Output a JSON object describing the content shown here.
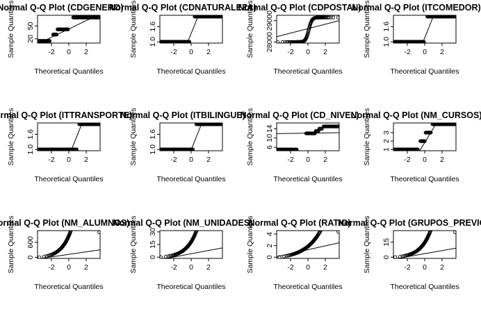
{
  "chart_data": [
    {
      "type": "scatter",
      "title": "Normal Q-Q Plot (CDGENERO)",
      "xlabel": "Theoretical Quantiles",
      "ylabel": "Sample Quantiles",
      "xticks": [
        -2,
        0,
        2
      ],
      "yticks": [
        20,
        50
      ],
      "xlim": [
        -3.6,
        3.6
      ],
      "ylim": [
        10,
        75
      ],
      "levels": [
        {
          "x0": -3.5,
          "x1": -2.2,
          "y": 15
        },
        {
          "x0": -1.8,
          "x1": -1.4,
          "y": 30
        },
        {
          "x0": -1.3,
          "x1": -0.1,
          "y": 42
        },
        {
          "x0": 0.5,
          "x1": 3.5,
          "y": 70
        }
      ],
      "curve": null,
      "line": [
        [
          -3.6,
          8
        ],
        [
          3.6,
          78
        ]
      ]
    },
    {
      "type": "scatter",
      "title": "Normal Q-Q Plot (CDNATURALEZA)",
      "xlabel": "Theoretical Quantiles",
      "ylabel": "Sample Quantiles",
      "xticks": [
        -2,
        0,
        2
      ],
      "yticks": [
        1.0,
        1.6
      ],
      "xlim": [
        -3.6,
        3.6
      ],
      "ylim": [
        0.95,
        2.05
      ],
      "levels": [
        {
          "x0": -3.5,
          "x1": -0.2,
          "y": 1.0
        },
        {
          "x0": 0.4,
          "x1": 3.5,
          "y": 2.0
        }
      ],
      "curve": null,
      "line": [
        [
          -0.5,
          0.9
        ],
        [
          0.9,
          2.1
        ]
      ]
    },
    {
      "type": "scatter",
      "title": "Normal Q-Q Plot (CDPOSTAL)",
      "xlabel": "Theoretical Quantiles",
      "ylabel": "Sample Quantiles",
      "xticks": [
        -2,
        0,
        2
      ],
      "yticks": [
        28000,
        29000
      ],
      "xlim": [
        -3.6,
        3.6
      ],
      "ylim": [
        27950,
        29250
      ],
      "levels": [],
      "curve": {
        "x0": -3.5,
        "x1": 3.5,
        "lo": 28000,
        "hi": 29150,
        "k": 5.5,
        "mid": 0.1
      },
      "line": [
        [
          -3.6,
          28250
        ],
        [
          3.6,
          29000
        ]
      ]
    },
    {
      "type": "scatter",
      "title": "Normal Q-Q Plot (ITCOMEDOR)",
      "xlabel": "Theoretical Quantiles",
      "ylabel": "Sample Quantiles",
      "xticks": [
        -2,
        0,
        2
      ],
      "yticks": [
        1.0,
        1.6
      ],
      "xlim": [
        -3.6,
        3.6
      ],
      "ylim": [
        0.95,
        2.05
      ],
      "levels": [
        {
          "x0": -3.5,
          "x1": -0.1,
          "y": 1.0
        },
        {
          "x0": 0.3,
          "x1": 3.5,
          "y": 2.0
        }
      ],
      "curve": null,
      "line": [
        [
          -0.3,
          0.9
        ],
        [
          1.1,
          2.1
        ]
      ]
    },
    {
      "type": "scatter",
      "title": "Normal Q-Q Plot (ITTRANSPORTE)",
      "xlabel": "Theoretical Quantiles",
      "ylabel": "Sample Quantiles",
      "xticks": [
        -2,
        0,
        2
      ],
      "yticks": [
        1.0,
        1.6
      ],
      "xlim": [
        -3.6,
        3.6
      ],
      "ylim": [
        0.95,
        2.05
      ],
      "levels": [
        {
          "x0": -3.5,
          "x1": 0.9,
          "y": 1.0
        },
        {
          "x0": 1.2,
          "x1": 3.5,
          "y": 2.0
        }
      ],
      "curve": null,
      "line": [
        [
          0.2,
          0.9
        ],
        [
          1.6,
          2.1
        ]
      ]
    },
    {
      "type": "scatter",
      "title": "Normal Q-Q Plot (ITBILINGUE)",
      "xlabel": "Theoretical Quantiles",
      "ylabel": "Sample Quantiles",
      "xticks": [
        -2,
        0,
        2
      ],
      "yticks": [
        1.0,
        1.6
      ],
      "xlim": [
        -3.6,
        3.6
      ],
      "ylim": [
        0.95,
        2.05
      ],
      "levels": [
        {
          "x0": -3.5,
          "x1": 0.2,
          "y": 1.0
        },
        {
          "x0": 0.6,
          "x1": 3.5,
          "y": 2.0
        }
      ],
      "curve": null,
      "line": [
        [
          -0.1,
          0.9
        ],
        [
          1.3,
          2.1
        ]
      ]
    },
    {
      "type": "scatter",
      "title": "Normal Q-Q Plot (CD_NIVEL)",
      "xlabel": "Theoretical Quantiles",
      "ylabel": "Sample Quantiles",
      "xticks": [
        -2,
        0,
        2
      ],
      "yticks": [
        6,
        10,
        14
      ],
      "xlim": [
        -3.6,
        3.6
      ],
      "ylim": [
        4.5,
        16.5
      ],
      "levels": [
        {
          "x0": -3.5,
          "x1": -1.3,
          "y": 5
        },
        {
          "x0": -0.2,
          "x1": 0.8,
          "y": 12
        },
        {
          "x0": 0.9,
          "x1": 1.2,
          "y": 13
        },
        {
          "x0": 1.3,
          "x1": 1.6,
          "y": 14
        },
        {
          "x0": 1.8,
          "x1": 3.5,
          "y": 15
        }
      ],
      "curve": null,
      "line": [
        [
          -3.6,
          11.9
        ],
        [
          3.6,
          12.3
        ]
      ]
    },
    {
      "type": "scatter",
      "title": "Normal Q-Q Plot (NM_CURSOS)",
      "xlabel": "Theoretical Quantiles",
      "ylabel": "Sample Quantiles",
      "xticks": [
        -2,
        0,
        2
      ],
      "yticks": [
        1.0,
        2.0,
        3.0
      ],
      "xlim": [
        -3.6,
        3.6
      ],
      "ylim": [
        0.85,
        4.15
      ],
      "levels": [
        {
          "x0": -3.5,
          "x1": -0.8,
          "y": 1.0
        },
        {
          "x0": -0.5,
          "x1": 0.0,
          "y": 2.0
        },
        {
          "x0": 0.1,
          "x1": 0.7,
          "y": 3.0
        },
        {
          "x0": 0.9,
          "x1": 3.5,
          "y": 4.0
        }
      ],
      "curve": null,
      "line": [
        [
          -0.6,
          0.8
        ],
        [
          1.4,
          4.2
        ]
      ]
    },
    {
      "type": "scatter",
      "title": "Normal Q-Q Plot (NM_ALUMNOS)",
      "xlabel": "Theoretical Quantiles",
      "ylabel": "Sample Quantiles",
      "xticks": [
        -2,
        0,
        2
      ],
      "yticks": [
        0,
        600
      ],
      "xlim": [
        -3.6,
        3.6
      ],
      "ylim": [
        -40,
        1060
      ],
      "levels": [],
      "curve": {
        "x0": -3.5,
        "x1": 3.4,
        "y0": 0,
        "a": 60,
        "k": 0.9
      },
      "line": [
        [
          -3.6,
          -60
        ],
        [
          3.6,
          300
        ]
      ],
      "extra": [
        [
          3.5,
          1000
        ]
      ]
    },
    {
      "type": "scatter",
      "title": "Normal Q-Q Plot (NM_UNIDADES)",
      "xlabel": "Theoretical Quantiles",
      "ylabel": "Sample Quantiles",
      "xticks": [
        -2,
        0,
        2
      ],
      "yticks": [
        0,
        15,
        30
      ],
      "xlim": [
        -3.6,
        3.6
      ],
      "ylim": [
        -1.5,
        31.5
      ],
      "levels": [],
      "curve": {
        "x0": -3.5,
        "x1": 3.5,
        "y0": 0,
        "a": 1.5,
        "k": 0.85
      },
      "line": [
        [
          -3.6,
          -3
        ],
        [
          3.6,
          11
        ]
      ]
    },
    {
      "type": "scatter",
      "title": "Normal Q-Q Plot (RATIO)",
      "xlabel": "Theoretical Quantiles",
      "ylabel": "Sample Quantiles",
      "xticks": [
        -2,
        0,
        2
      ],
      "yticks": [
        0,
        2,
        4
      ],
      "xlim": [
        -3.6,
        3.6
      ],
      "ylim": [
        -0.2,
        4.6
      ],
      "levels": [],
      "curve": {
        "x0": -3.4,
        "x1": 3.3,
        "y0": 0,
        "a": 0.45,
        "k": 0.55
      },
      "line": [
        [
          -3.6,
          0.1
        ],
        [
          3.6,
          2.5
        ]
      ],
      "extra": [
        [
          3.5,
          4.4
        ]
      ]
    },
    {
      "type": "scatter",
      "title": "Normal Q-Q Plot (GRUPOS_PREVIOS)",
      "xlabel": "Theoretical Quantiles",
      "ylabel": "Sample Quantiles",
      "xticks": [
        -2,
        0,
        2
      ],
      "yticks": [
        0,
        15
      ],
      "xlim": [
        -3.6,
        3.6
      ],
      "ylim": [
        -1.2,
        26.5
      ],
      "levels": [],
      "curve": {
        "x0": -3.5,
        "x1": 3.4,
        "y0": 0,
        "a": 1.2,
        "k": 0.85
      },
      "line": [
        [
          -3.6,
          -2
        ],
        [
          3.6,
          9
        ]
      ],
      "extra": [
        [
          3.5,
          25
        ]
      ]
    }
  ]
}
